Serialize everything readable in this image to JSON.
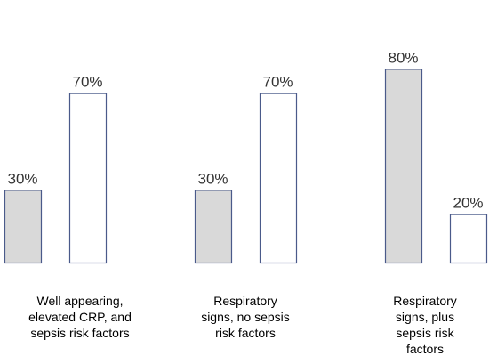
{
  "chart_data": {
    "type": "bar",
    "categories": [
      [
        "Well appearing,",
        "elevated CRP, and",
        "sepsis risk factors"
      ],
      [
        "Respiratory",
        "signs, no sepsis",
        "risk factors"
      ],
      [
        "Respiratory",
        "signs, plus",
        "sepsis risk",
        "factors"
      ]
    ],
    "series": [
      {
        "values": [
          30,
          30,
          80
        ],
        "labels": [
          "30%",
          "30%",
          "80%"
        ],
        "fill": "#d9d9d9",
        "stroke": "#4a5a8a"
      },
      {
        "values": [
          70,
          70,
          20
        ],
        "labels": [
          "70%",
          "70%",
          "20%"
        ],
        "fill": "#ffffff",
        "stroke": "#4a5a8a"
      }
    ],
    "ylim": [
      0,
      100
    ],
    "grid": false,
    "legend": "none"
  }
}
